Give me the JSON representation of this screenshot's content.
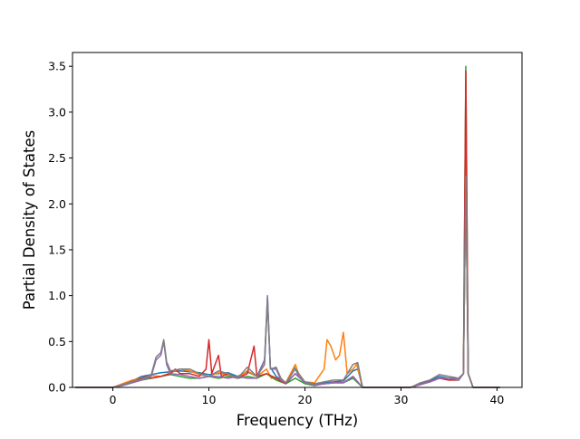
{
  "chart_data": {
    "type": "line",
    "title": "",
    "xlabel": "Frequency (THz)",
    "ylabel": "Partial Density of States",
    "xlim": [
      -4.2,
      42.6
    ],
    "ylim": [
      0.0,
      3.65
    ],
    "x_ticks": [
      0,
      10,
      20,
      30,
      40
    ],
    "y_ticks": [
      0.0,
      0.5,
      1.0,
      1.5,
      2.0,
      2.5,
      3.0,
      3.5
    ],
    "x_tick_labels": [
      "0",
      "10",
      "20",
      "30",
      "40"
    ],
    "y_tick_labels": [
      "0.0",
      "0.5",
      "1.0",
      "1.5",
      "2.0",
      "2.5",
      "3.0",
      "3.5"
    ],
    "grid": false,
    "legend": "none",
    "series": [
      {
        "color": "#1f77b4",
        "points": [
          [
            -3.9,
            0
          ],
          [
            0.0,
            0
          ],
          [
            1.0,
            0.03
          ],
          [
            2.0,
            0.07
          ],
          [
            3.0,
            0.12
          ],
          [
            4.0,
            0.14
          ],
          [
            5.0,
            0.16
          ],
          [
            6.0,
            0.17
          ],
          [
            7.0,
            0.18
          ],
          [
            8.0,
            0.17
          ],
          [
            9.0,
            0.16
          ],
          [
            10.0,
            0.14
          ],
          [
            11.0,
            0.15
          ],
          [
            12.0,
            0.16
          ],
          [
            13.0,
            0.12
          ],
          [
            14.0,
            0.17
          ],
          [
            15.0,
            0.12
          ],
          [
            15.8,
            0.3
          ],
          [
            16.1,
            0.98
          ],
          [
            16.4,
            0.22
          ],
          [
            17.0,
            0.12
          ],
          [
            18.0,
            0.05
          ],
          [
            18.9,
            0.22
          ],
          [
            19.4,
            0.12
          ],
          [
            20.0,
            0.05
          ],
          [
            21.0,
            0.03
          ],
          [
            22.0,
            0.05
          ],
          [
            23.0,
            0.06
          ],
          [
            24.0,
            0.07
          ],
          [
            25.0,
            0.18
          ],
          [
            25.5,
            0.2
          ],
          [
            26.0,
            0.0
          ],
          [
            31.0,
            0.0
          ],
          [
            32.0,
            0.04
          ],
          [
            33.0,
            0.07
          ],
          [
            34.0,
            0.12
          ],
          [
            35.0,
            0.1
          ],
          [
            36.0,
            0.1
          ],
          [
            36.5,
            0.15
          ],
          [
            36.75,
            2.3
          ],
          [
            37.0,
            0.15
          ],
          [
            37.5,
            0.0
          ],
          [
            40.3,
            0
          ]
        ]
      },
      {
        "color": "#ff7f0e",
        "points": [
          [
            -3.9,
            0
          ],
          [
            0.0,
            0
          ],
          [
            1.0,
            0.04
          ],
          [
            2.0,
            0.08
          ],
          [
            3.0,
            0.1
          ],
          [
            4.0,
            0.13
          ],
          [
            5.0,
            0.12
          ],
          [
            6.0,
            0.16
          ],
          [
            7.0,
            0.2
          ],
          [
            8.0,
            0.18
          ],
          [
            9.0,
            0.14
          ],
          [
            10.0,
            0.12
          ],
          [
            11.0,
            0.16
          ],
          [
            12.0,
            0.13
          ],
          [
            13.0,
            0.1
          ],
          [
            14.0,
            0.18
          ],
          [
            15.0,
            0.12
          ],
          [
            16.0,
            0.2
          ],
          [
            16.5,
            0.1
          ],
          [
            17.0,
            0.1
          ],
          [
            18.0,
            0.05
          ],
          [
            19.0,
            0.25
          ],
          [
            19.5,
            0.1
          ],
          [
            20.0,
            0.06
          ],
          [
            21.0,
            0.05
          ],
          [
            22.0,
            0.2
          ],
          [
            22.3,
            0.52
          ],
          [
            22.7,
            0.45
          ],
          [
            23.2,
            0.3
          ],
          [
            23.6,
            0.35
          ],
          [
            24.0,
            0.6
          ],
          [
            24.4,
            0.15
          ],
          [
            25.0,
            0.2
          ],
          [
            25.4,
            0.25
          ],
          [
            26.0,
            0.0
          ],
          [
            31.0,
            0.0
          ],
          [
            32.0,
            0.03
          ],
          [
            33.0,
            0.06
          ],
          [
            34.0,
            0.1
          ],
          [
            35.0,
            0.1
          ],
          [
            36.0,
            0.08
          ],
          [
            36.5,
            0.15
          ],
          [
            36.75,
            2.28
          ],
          [
            37.0,
            0.15
          ],
          [
            37.5,
            0.0
          ],
          [
            40.3,
            0
          ]
        ]
      },
      {
        "color": "#2ca02c",
        "points": [
          [
            -3.9,
            0
          ],
          [
            0.0,
            0
          ],
          [
            1.0,
            0.02
          ],
          [
            2.0,
            0.05
          ],
          [
            3.0,
            0.08
          ],
          [
            4.0,
            0.1
          ],
          [
            5.0,
            0.12
          ],
          [
            6.0,
            0.14
          ],
          [
            7.0,
            0.12
          ],
          [
            8.0,
            0.1
          ],
          [
            9.0,
            0.1
          ],
          [
            10.0,
            0.12
          ],
          [
            11.0,
            0.1
          ],
          [
            12.0,
            0.12
          ],
          [
            13.0,
            0.1
          ],
          [
            14.0,
            0.12
          ],
          [
            15.0,
            0.1
          ],
          [
            16.0,
            0.15
          ],
          [
            17.0,
            0.08
          ],
          [
            18.0,
            0.04
          ],
          [
            19.0,
            0.1
          ],
          [
            20.0,
            0.04
          ],
          [
            21.0,
            0.02
          ],
          [
            22.0,
            0.04
          ],
          [
            23.0,
            0.05
          ],
          [
            24.0,
            0.05
          ],
          [
            25.0,
            0.1
          ],
          [
            26.0,
            0.0
          ],
          [
            31.0,
            0.0
          ],
          [
            32.0,
            0.03
          ],
          [
            33.0,
            0.06
          ],
          [
            34.0,
            0.1
          ],
          [
            35.0,
            0.08
          ],
          [
            36.0,
            0.08
          ],
          [
            36.5,
            0.15
          ],
          [
            36.75,
            3.5
          ],
          [
            37.0,
            0.15
          ],
          [
            37.5,
            0.0
          ],
          [
            40.3,
            0
          ]
        ]
      },
      {
        "color": "#d62728",
        "points": [
          [
            -3.9,
            0
          ],
          [
            0.0,
            0
          ],
          [
            1.0,
            0.03
          ],
          [
            2.0,
            0.06
          ],
          [
            3.0,
            0.1
          ],
          [
            3.5,
            0.12
          ],
          [
            4.0,
            0.1
          ],
          [
            5.0,
            0.12
          ],
          [
            6.0,
            0.15
          ],
          [
            6.5,
            0.2
          ],
          [
            7.0,
            0.15
          ],
          [
            8.0,
            0.15
          ],
          [
            9.0,
            0.12
          ],
          [
            9.7,
            0.2
          ],
          [
            10.0,
            0.52
          ],
          [
            10.3,
            0.15
          ],
          [
            11.0,
            0.35
          ],
          [
            11.3,
            0.12
          ],
          [
            12.0,
            0.15
          ],
          [
            13.0,
            0.1
          ],
          [
            14.0,
            0.15
          ],
          [
            14.7,
            0.45
          ],
          [
            15.0,
            0.12
          ],
          [
            16.0,
            0.15
          ],
          [
            17.0,
            0.1
          ],
          [
            18.0,
            0.04
          ],
          [
            19.0,
            0.15
          ],
          [
            20.0,
            0.05
          ],
          [
            21.0,
            0.03
          ],
          [
            22.0,
            0.04
          ],
          [
            23.0,
            0.05
          ],
          [
            24.0,
            0.05
          ],
          [
            25.0,
            0.12
          ],
          [
            26.0,
            0.0
          ],
          [
            31.0,
            0.0
          ],
          [
            32.0,
            0.03
          ],
          [
            33.0,
            0.06
          ],
          [
            34.0,
            0.1
          ],
          [
            35.0,
            0.08
          ],
          [
            36.0,
            0.08
          ],
          [
            36.5,
            0.15
          ],
          [
            36.75,
            3.45
          ],
          [
            37.0,
            0.15
          ],
          [
            37.5,
            0.0
          ],
          [
            40.3,
            0
          ]
        ]
      },
      {
        "color": "#9467bd",
        "points": [
          [
            -3.9,
            0
          ],
          [
            0.0,
            0
          ],
          [
            1.0,
            0.02
          ],
          [
            2.0,
            0.05
          ],
          [
            3.0,
            0.08
          ],
          [
            4.0,
            0.12
          ],
          [
            4.5,
            0.3
          ],
          [
            5.0,
            0.35
          ],
          [
            5.3,
            0.5
          ],
          [
            5.6,
            0.25
          ],
          [
            6.0,
            0.15
          ],
          [
            7.0,
            0.14
          ],
          [
            8.0,
            0.12
          ],
          [
            9.0,
            0.1
          ],
          [
            10.0,
            0.12
          ],
          [
            11.0,
            0.12
          ],
          [
            12.0,
            0.1
          ],
          [
            13.0,
            0.12
          ],
          [
            14.0,
            0.1
          ],
          [
            15.0,
            0.1
          ],
          [
            15.8,
            0.3
          ],
          [
            16.1,
            1.0
          ],
          [
            16.4,
            0.2
          ],
          [
            17.0,
            0.2
          ],
          [
            17.5,
            0.08
          ],
          [
            18.0,
            0.05
          ],
          [
            19.0,
            0.15
          ],
          [
            20.0,
            0.05
          ],
          [
            21.0,
            0.03
          ],
          [
            22.0,
            0.04
          ],
          [
            23.0,
            0.05
          ],
          [
            24.0,
            0.05
          ],
          [
            25.0,
            0.12
          ],
          [
            26.0,
            0.0
          ],
          [
            31.0,
            0.0
          ],
          [
            32.0,
            0.03
          ],
          [
            33.0,
            0.06
          ],
          [
            34.0,
            0.1
          ],
          [
            35.0,
            0.1
          ],
          [
            36.0,
            0.08
          ],
          [
            36.5,
            0.15
          ],
          [
            36.75,
            2.3
          ],
          [
            37.0,
            0.15
          ],
          [
            37.5,
            0.0
          ],
          [
            40.3,
            0
          ]
        ]
      },
      {
        "color": "#7f7f7f",
        "points": [
          [
            -3.9,
            0
          ],
          [
            0.0,
            0
          ],
          [
            1.0,
            0.03
          ],
          [
            2.0,
            0.06
          ],
          [
            3.0,
            0.09
          ],
          [
            4.0,
            0.14
          ],
          [
            4.5,
            0.33
          ],
          [
            5.0,
            0.38
          ],
          [
            5.3,
            0.52
          ],
          [
            5.6,
            0.28
          ],
          [
            6.0,
            0.18
          ],
          [
            7.0,
            0.2
          ],
          [
            8.0,
            0.2
          ],
          [
            9.0,
            0.15
          ],
          [
            10.0,
            0.12
          ],
          [
            11.0,
            0.18
          ],
          [
            12.0,
            0.15
          ],
          [
            13.0,
            0.1
          ],
          [
            14.0,
            0.22
          ],
          [
            15.0,
            0.12
          ],
          [
            15.8,
            0.25
          ],
          [
            16.1,
            0.95
          ],
          [
            16.4,
            0.2
          ],
          [
            17.0,
            0.22
          ],
          [
            17.5,
            0.1
          ],
          [
            18.0,
            0.05
          ],
          [
            19.0,
            0.2
          ],
          [
            20.0,
            0.06
          ],
          [
            21.0,
            0.04
          ],
          [
            22.0,
            0.06
          ],
          [
            23.0,
            0.08
          ],
          [
            24.0,
            0.08
          ],
          [
            25.0,
            0.25
          ],
          [
            25.5,
            0.27
          ],
          [
            26.0,
            0.0
          ],
          [
            31.0,
            0.0
          ],
          [
            32.0,
            0.05
          ],
          [
            33.0,
            0.08
          ],
          [
            34.0,
            0.14
          ],
          [
            35.0,
            0.12
          ],
          [
            36.0,
            0.1
          ],
          [
            36.5,
            0.15
          ],
          [
            36.75,
            2.3
          ],
          [
            37.0,
            0.15
          ],
          [
            37.5,
            0.0
          ],
          [
            40.3,
            0
          ]
        ]
      }
    ]
  }
}
